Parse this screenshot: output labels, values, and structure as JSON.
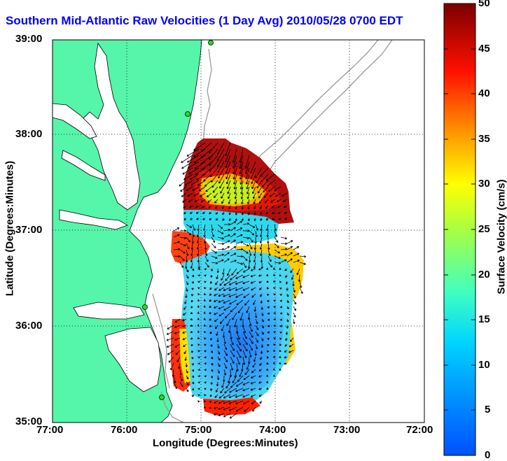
{
  "title": "Southern Mid-Atlantic Raw Velocities (1 Day Avg) 2010/05/28 0700 EDT",
  "axes": {
    "xlabel": "Longitude (Degrees:Minutes)",
    "ylabel": "Latitude (Degrees:Minutes)",
    "xticks": [
      "77:00",
      "76:00",
      "75:00",
      "74:00",
      "73:00",
      "72:00"
    ],
    "yticks": [
      "39:00",
      "38:00",
      "37:00",
      "36:00",
      "35:00"
    ]
  },
  "colorbar": {
    "label": "Surface Velocity (cm/s)",
    "ticks": [
      "50",
      "45",
      "40",
      "35",
      "30",
      "25",
      "20",
      "15",
      "10",
      "5",
      "0"
    ],
    "range": [
      0,
      50
    ],
    "colormap": "jet"
  },
  "map": {
    "lon_range": [
      -77,
      -72
    ],
    "lat_range": [
      35,
      39
    ],
    "grid": true,
    "land_color": "#55f5aa",
    "water_color": "#ffffff",
    "bathymetry_color": "#999999",
    "station_color": "#22dd22"
  }
}
